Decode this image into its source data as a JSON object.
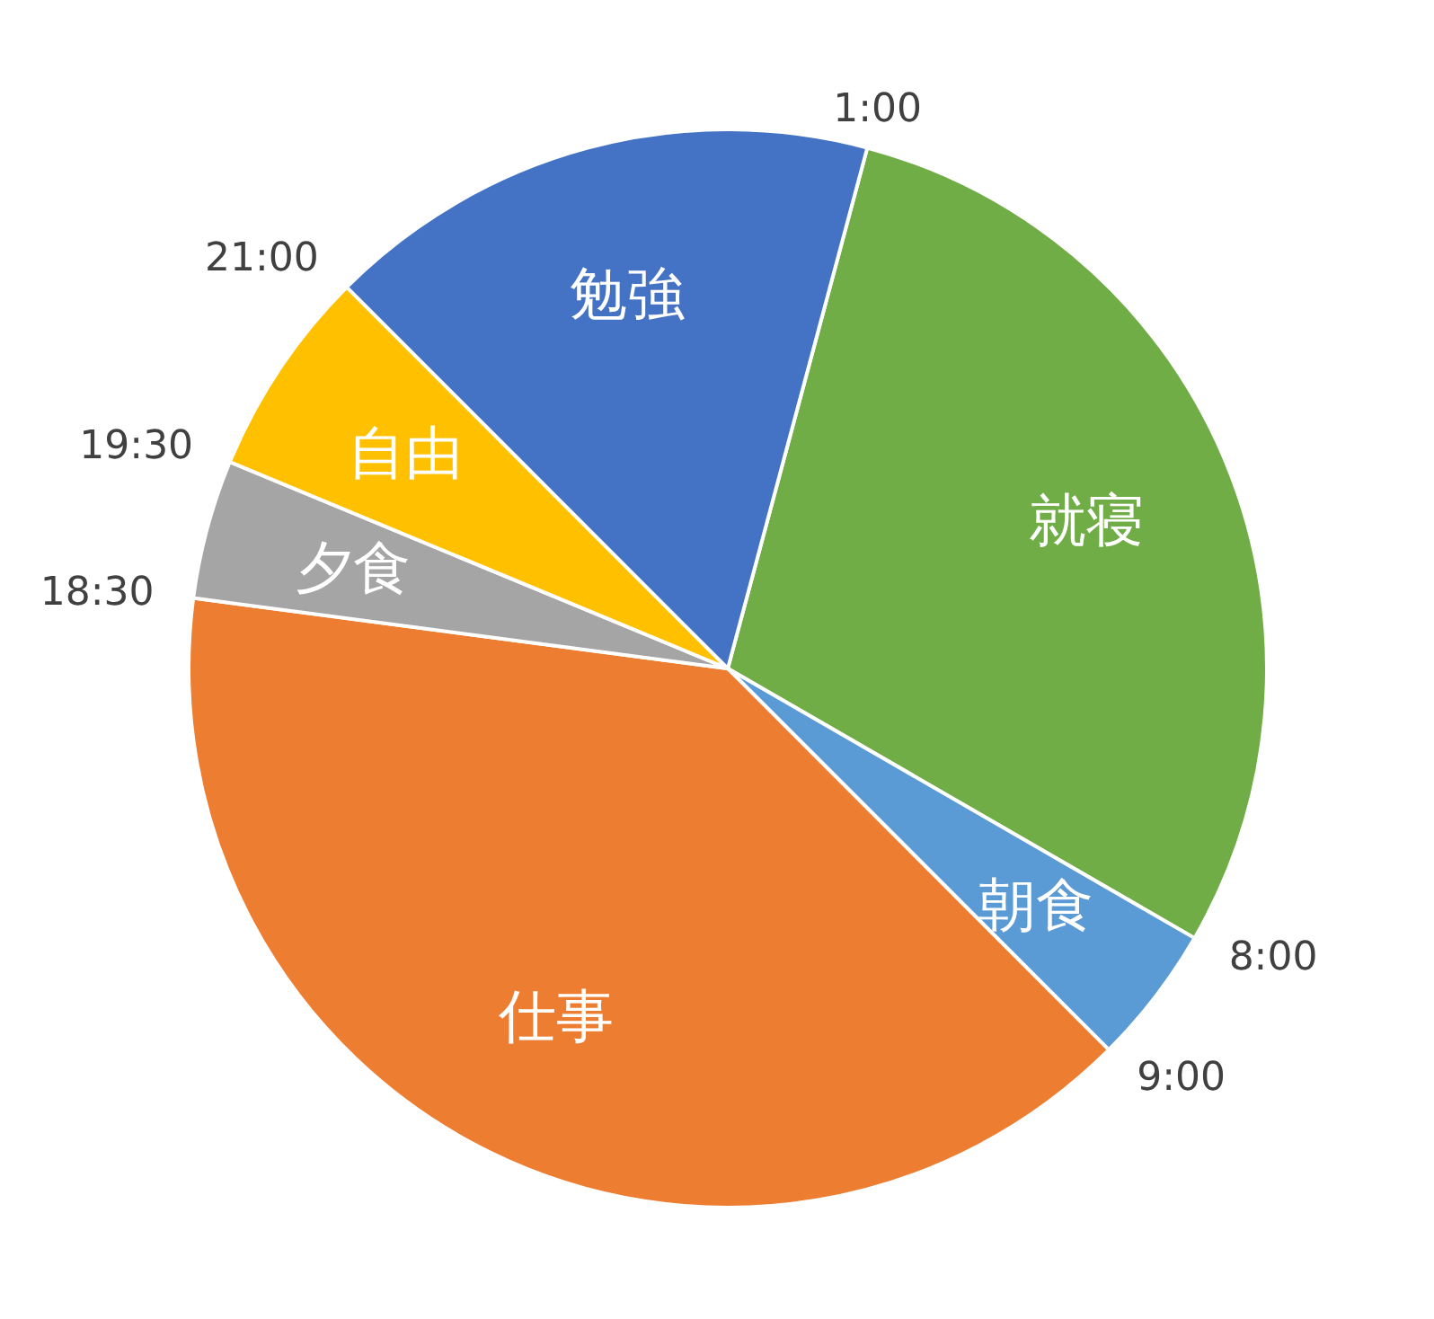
{
  "chart_data": {
    "type": "pie",
    "categories": [
      "就寝",
      "朝食",
      "仕事",
      "夕食",
      "自由",
      "勉強"
    ],
    "values": [
      29.17,
      4.17,
      39.58,
      4.17,
      6.25,
      16.66
    ],
    "colors": [
      "#70ad47",
      "#5b9bd5",
      "#ed7d31",
      "#a5a5a5",
      "#ffc000",
      "#4472c4"
    ],
    "annotations": [
      "1:00",
      "8:00",
      "9:00",
      "18:30",
      "19:30",
      "21:00"
    ]
  }
}
